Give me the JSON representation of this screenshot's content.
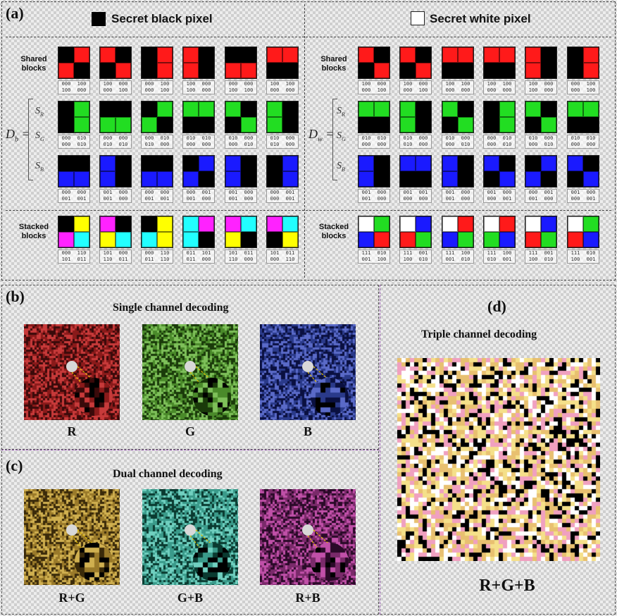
{
  "panel_a": {
    "label": "(a)",
    "left_header": "Secret black pixel",
    "right_header": "Secret white pixel",
    "shared_label": "Shared\nblocks",
    "stacked_label": "Stacked\nblocks",
    "d_label": "D",
    "d_sub": "b",
    "d_sub_white": "w",
    "s_labels": [
      "S",
      "S",
      "S"
    ],
    "s_subs": [
      "R",
      "G",
      "B"
    ],
    "left_rows": {
      "shared": [
        [
          "k",
          "r",
          "r",
          "k"
        ],
        [
          "r",
          "k",
          "k",
          "r"
        ],
        [
          "k",
          "r",
          "k",
          "r"
        ],
        [
          "r",
          "k",
          "r",
          "k"
        ],
        [
          "k",
          "k",
          "r",
          "r"
        ],
        [
          "r",
          "r",
          "k",
          "k"
        ]
      ],
      "sr": [
        [
          "k",
          "g",
          "k",
          "g"
        ],
        [
          "k",
          "k",
          "g",
          "g"
        ],
        [
          "k",
          "g",
          "g",
          "k"
        ],
        [
          "g",
          "g",
          "k",
          "k"
        ],
        [
          "g",
          "k",
          "k",
          "g"
        ],
        [
          "g",
          "k",
          "g",
          "k"
        ]
      ],
      "sg": [
        [
          "k",
          "k",
          "b",
          "b"
        ],
        [
          "b",
          "k",
          "b",
          "k"
        ],
        [
          "k",
          "k",
          "b",
          "b"
        ],
        [
          "k",
          "b",
          "b",
          "k"
        ],
        [
          "b",
          "k",
          "b",
          "k"
        ],
        [
          "k",
          "b",
          "k",
          "b"
        ]
      ],
      "stacked": [
        [
          "k",
          "y",
          "m",
          "c"
        ],
        [
          "m",
          "k",
          "y",
          "c"
        ],
        [
          "k",
          "y",
          "c",
          "y"
        ],
        [
          "c",
          "m",
          "c",
          "k"
        ],
        [
          "m",
          "c",
          "y",
          "k"
        ],
        [
          "m",
          "c",
          "k",
          "y"
        ]
      ]
    },
    "right_rows": {
      "shared": [
        [
          "r",
          "k",
          "k",
          "r"
        ],
        [
          "r",
          "k",
          "k",
          "r"
        ],
        [
          "r",
          "r",
          "k",
          "k"
        ],
        [
          "r",
          "r",
          "k",
          "k"
        ],
        [
          "r",
          "k",
          "r",
          "k"
        ],
        [
          "k",
          "r",
          "k",
          "r"
        ]
      ],
      "sr": [
        [
          "g",
          "g",
          "k",
          "k"
        ],
        [
          "g",
          "k",
          "g",
          "k"
        ],
        [
          "g",
          "k",
          "k",
          "g"
        ],
        [
          "k",
          "g",
          "k",
          "g"
        ],
        [
          "g",
          "k",
          "k",
          "g"
        ],
        [
          "g",
          "g",
          "k",
          "k"
        ]
      ],
      "sg": [
        [
          "b",
          "k",
          "b",
          "k"
        ],
        [
          "b",
          "b",
          "k",
          "k"
        ],
        [
          "b",
          "k",
          "b",
          "k"
        ],
        [
          "b",
          "k",
          "k",
          "b"
        ],
        [
          "k",
          "b",
          "b",
          "k"
        ],
        [
          "b",
          "k",
          "k",
          "b"
        ]
      ],
      "stacked": [
        [
          "w",
          "g",
          "b",
          "r"
        ],
        [
          "w",
          "b",
          "r",
          "g"
        ],
        [
          "w",
          "r",
          "b",
          "g"
        ],
        [
          "w",
          "r",
          "g",
          "b"
        ],
        [
          "w",
          "b",
          "r",
          "g"
        ],
        [
          "w",
          "g",
          "r",
          "b"
        ]
      ]
    },
    "left_codes": {
      "shared": [
        [
          "000",
          "100",
          "100",
          "000"
        ],
        [
          "100",
          "000",
          "000",
          "100"
        ],
        [
          "000",
          "100",
          "000",
          "100"
        ],
        [
          "100",
          "000",
          "100",
          "000"
        ],
        [
          "000",
          "000",
          "100",
          "100"
        ],
        [
          "100",
          "100",
          "000",
          "000"
        ]
      ],
      "sr": [
        [
          "000",
          "010",
          "000",
          "010"
        ],
        [
          "000",
          "000",
          "010",
          "010"
        ],
        [
          "000",
          "010",
          "010",
          "000"
        ],
        [
          "010",
          "010",
          "000",
          "000"
        ],
        [
          "010",
          "000",
          "000",
          "010"
        ],
        [
          "010",
          "000",
          "010",
          "000"
        ]
      ],
      "sg": [
        [
          "000",
          "000",
          "001",
          "001"
        ],
        [
          "001",
          "000",
          "001",
          "000"
        ],
        [
          "000",
          "000",
          "001",
          "001"
        ],
        [
          "000",
          "001",
          "001",
          "000"
        ],
        [
          "001",
          "000",
          "001",
          "000"
        ],
        [
          "000",
          "001",
          "000",
          "001"
        ]
      ],
      "stacked": [
        [
          "000",
          "110",
          "101",
          "011"
        ],
        [
          "101",
          "000",
          "110",
          "011"
        ],
        [
          "000",
          "110",
          "011",
          "110"
        ],
        [
          "011",
          "101",
          "011",
          "000"
        ],
        [
          "101",
          "011",
          "110",
          "000"
        ],
        [
          "101",
          "011",
          "000",
          "110"
        ]
      ]
    },
    "right_codes": {
      "shared": [
        [
          "100",
          "000",
          "000",
          "100"
        ],
        [
          "100",
          "000",
          "000",
          "100"
        ],
        [
          "100",
          "100",
          "000",
          "000"
        ],
        [
          "100",
          "100",
          "000",
          "000"
        ],
        [
          "100",
          "000",
          "100",
          "000"
        ],
        [
          "000",
          "100",
          "000",
          "100"
        ]
      ],
      "sr": [
        [
          "010",
          "010",
          "000",
          "000"
        ],
        [
          "010",
          "000",
          "010",
          "000"
        ],
        [
          "010",
          "000",
          "000",
          "010"
        ],
        [
          "000",
          "010",
          "000",
          "010"
        ],
        [
          "010",
          "000",
          "000",
          "010"
        ],
        [
          "010",
          "010",
          "000",
          "000"
        ]
      ],
      "sg": [
        [
          "001",
          "000",
          "001",
          "000"
        ],
        [
          "001",
          "001",
          "000",
          "000"
        ],
        [
          "001",
          "000",
          "001",
          "000"
        ],
        [
          "001",
          "000",
          "000",
          "001"
        ],
        [
          "000",
          "001",
          "001",
          "000"
        ],
        [
          "001",
          "000",
          "000",
          "001"
        ]
      ],
      "stacked": [
        [
          "111",
          "010",
          "001",
          "100"
        ],
        [
          "111",
          "001",
          "100",
          "010"
        ],
        [
          "111",
          "100",
          "001",
          "010"
        ],
        [
          "111",
          "100",
          "010",
          "001"
        ],
        [
          "111",
          "001",
          "100",
          "010"
        ],
        [
          "111",
          "010",
          "100",
          "001"
        ]
      ]
    }
  },
  "panel_b": {
    "label": "(b)",
    "title": "Single channel decoding",
    "captions": [
      "R",
      "G",
      "B"
    ]
  },
  "panel_c": {
    "label": "(c)",
    "title": "Dual channel decoding",
    "captions": [
      "R+G",
      "G+B",
      "R+B"
    ]
  },
  "panel_d": {
    "label": "(d)",
    "title": "Triple channel decoding",
    "caption": "R+G+B"
  },
  "colors": {
    "k": "#000000",
    "r": "#ff1a1a",
    "g": "#22dd22",
    "b": "#1a1aff",
    "y": "#ffff00",
    "m": "#ff22ff",
    "c": "#22ffff",
    "w": "#ffffff",
    "purple_divider": "#9b59b6",
    "img_red": [
      "#8a1a1a",
      "#c83a3a",
      "#3a0a0a"
    ],
    "img_green": [
      "#4a8a2a",
      "#7ec05a",
      "#1a3a0a"
    ],
    "img_blue": [
      "#2a3a8a",
      "#5a6ac8",
      "#0a1040"
    ],
    "img_rg": [
      "#9a7a2a",
      "#d0b050",
      "#3a2a0a"
    ],
    "img_gb": [
      "#3a9a8a",
      "#70d0c0",
      "#0a3a30"
    ],
    "img_rb": [
      "#7a2a6a",
      "#c050a8",
      "#2a0a28"
    ],
    "img_rgb": [
      "#f5e08a",
      "#f0a0c0",
      "#000000",
      "#ffffff",
      "#e8c070"
    ]
  }
}
